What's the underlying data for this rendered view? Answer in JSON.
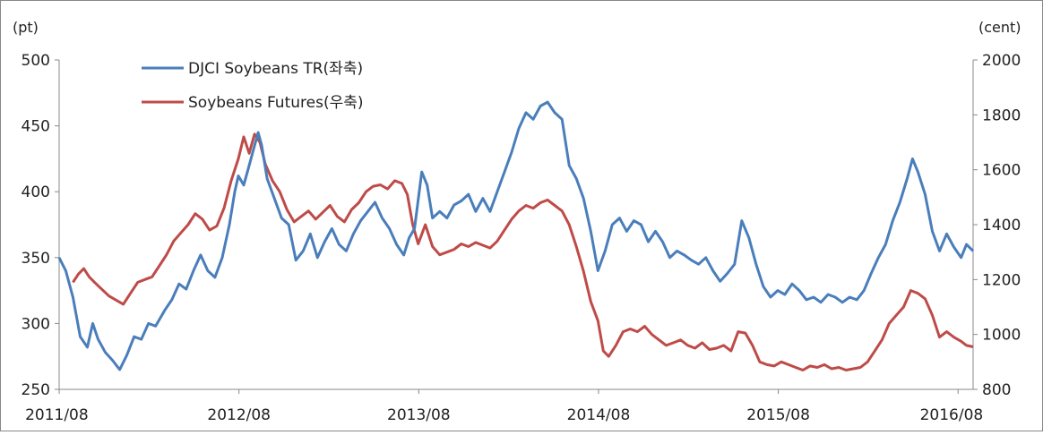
{
  "chart_data": {
    "type": "line",
    "title": "",
    "left_unit": "(pt)",
    "right_unit": "(cent)",
    "x_ticks": [
      "2011/08",
      "2012/08",
      "2013/08",
      "2014/08",
      "2015/08",
      "2016/08"
    ],
    "x_range": [
      2011.583,
      2016.667
    ],
    "left_axis": {
      "ylim": [
        250,
        500
      ],
      "ticks": [
        "500",
        "450",
        "400",
        "350",
        "300",
        "250"
      ]
    },
    "right_axis": {
      "ylim": [
        800,
        2000
      ],
      "ticks": [
        "2000",
        "1800",
        "1600",
        "1400",
        "1200",
        "1000",
        "800"
      ]
    },
    "grid": false,
    "legend_position": "top-left",
    "series": [
      {
        "name": "DJCI Soybeans TR(좌축)",
        "axis": "left",
        "color": "#4A7EBB",
        "points": [
          [
            2011.583,
            350
          ],
          [
            2011.62,
            340
          ],
          [
            2011.66,
            320
          ],
          [
            2011.7,
            290
          ],
          [
            2011.74,
            282
          ],
          [
            2011.77,
            300
          ],
          [
            2011.8,
            288
          ],
          [
            2011.84,
            278
          ],
          [
            2011.88,
            272
          ],
          [
            2011.92,
            265
          ],
          [
            2011.96,
            276
          ],
          [
            2012.0,
            290
          ],
          [
            2012.04,
            288
          ],
          [
            2012.08,
            300
          ],
          [
            2012.12,
            298
          ],
          [
            2012.17,
            310
          ],
          [
            2012.21,
            318
          ],
          [
            2012.25,
            330
          ],
          [
            2012.29,
            326
          ],
          [
            2012.33,
            340
          ],
          [
            2012.37,
            352
          ],
          [
            2012.41,
            340
          ],
          [
            2012.45,
            335
          ],
          [
            2012.49,
            350
          ],
          [
            2012.53,
            375
          ],
          [
            2012.56,
            400
          ],
          [
            2012.58,
            412
          ],
          [
            2012.61,
            405
          ],
          [
            2012.64,
            420
          ],
          [
            2012.66,
            430
          ],
          [
            2012.69,
            445
          ],
          [
            2012.71,
            435
          ],
          [
            2012.74,
            410
          ],
          [
            2012.78,
            395
          ],
          [
            2012.82,
            380
          ],
          [
            2012.86,
            375
          ],
          [
            2012.9,
            348
          ],
          [
            2012.94,
            355
          ],
          [
            2012.98,
            368
          ],
          [
            2013.02,
            350
          ],
          [
            2013.06,
            362
          ],
          [
            2013.1,
            372
          ],
          [
            2013.14,
            360
          ],
          [
            2013.18,
            355
          ],
          [
            2013.22,
            368
          ],
          [
            2013.26,
            378
          ],
          [
            2013.3,
            385
          ],
          [
            2013.34,
            392
          ],
          [
            2013.38,
            380
          ],
          [
            2013.42,
            372
          ],
          [
            2013.46,
            360
          ],
          [
            2013.5,
            352
          ],
          [
            2013.53,
            365
          ],
          [
            2013.56,
            372
          ],
          [
            2013.6,
            415
          ],
          [
            2013.63,
            405
          ],
          [
            2013.66,
            380
          ],
          [
            2013.7,
            385
          ],
          [
            2013.74,
            380
          ],
          [
            2013.78,
            390
          ],
          [
            2013.82,
            393
          ],
          [
            2013.86,
            398
          ],
          [
            2013.9,
            385
          ],
          [
            2013.94,
            395
          ],
          [
            2013.98,
            385
          ],
          [
            2014.02,
            400
          ],
          [
            2014.06,
            415
          ],
          [
            2014.1,
            430
          ],
          [
            2014.14,
            448
          ],
          [
            2014.18,
            460
          ],
          [
            2014.22,
            455
          ],
          [
            2014.26,
            465
          ],
          [
            2014.3,
            468
          ],
          [
            2014.34,
            460
          ],
          [
            2014.38,
            455
          ],
          [
            2014.42,
            420
          ],
          [
            2014.46,
            410
          ],
          [
            2014.5,
            395
          ],
          [
            2014.54,
            370
          ],
          [
            2014.58,
            340
          ],
          [
            2014.62,
            355
          ],
          [
            2014.66,
            375
          ],
          [
            2014.7,
            380
          ],
          [
            2014.74,
            370
          ],
          [
            2014.78,
            378
          ],
          [
            2014.82,
            375
          ],
          [
            2014.86,
            362
          ],
          [
            2014.9,
            370
          ],
          [
            2014.94,
            362
          ],
          [
            2014.98,
            350
          ],
          [
            2015.02,
            355
          ],
          [
            2015.06,
            352
          ],
          [
            2015.1,
            348
          ],
          [
            2015.14,
            345
          ],
          [
            2015.18,
            350
          ],
          [
            2015.22,
            340
          ],
          [
            2015.26,
            332
          ],
          [
            2015.3,
            338
          ],
          [
            2015.34,
            345
          ],
          [
            2015.38,
            378
          ],
          [
            2015.42,
            365
          ],
          [
            2015.46,
            345
          ],
          [
            2015.5,
            328
          ],
          [
            2015.54,
            320
          ],
          [
            2015.58,
            325
          ],
          [
            2015.62,
            322
          ],
          [
            2015.66,
            330
          ],
          [
            2015.7,
            325
          ],
          [
            2015.74,
            318
          ],
          [
            2015.78,
            320
          ],
          [
            2015.82,
            316
          ],
          [
            2015.86,
            322
          ],
          [
            2015.9,
            320
          ],
          [
            2015.94,
            316
          ],
          [
            2015.98,
            320
          ],
          [
            2016.02,
            318
          ],
          [
            2016.06,
            325
          ],
          [
            2016.1,
            338
          ],
          [
            2016.14,
            350
          ],
          [
            2016.18,
            360
          ],
          [
            2016.22,
            378
          ],
          [
            2016.26,
            392
          ],
          [
            2016.3,
            410
          ],
          [
            2016.33,
            425
          ],
          [
            2016.36,
            415
          ],
          [
            2016.4,
            398
          ],
          [
            2016.44,
            370
          ],
          [
            2016.48,
            355
          ],
          [
            2016.52,
            368
          ],
          [
            2016.56,
            358
          ],
          [
            2016.6,
            350
          ],
          [
            2016.63,
            360
          ],
          [
            2016.667,
            355
          ]
        ]
      },
      {
        "name": "Soybeans Futures(우축)",
        "axis": "right",
        "color": "#BE4B48",
        "points": [
          [
            2011.66,
            1190
          ],
          [
            2011.69,
            1220
          ],
          [
            2011.72,
            1240
          ],
          [
            2011.75,
            1210
          ],
          [
            2011.78,
            1190
          ],
          [
            2011.82,
            1165
          ],
          [
            2011.86,
            1140
          ],
          [
            2011.9,
            1125
          ],
          [
            2011.94,
            1110
          ],
          [
            2011.98,
            1150
          ],
          [
            2012.02,
            1190
          ],
          [
            2012.06,
            1200
          ],
          [
            2012.1,
            1210
          ],
          [
            2012.14,
            1250
          ],
          [
            2012.18,
            1290
          ],
          [
            2012.22,
            1340
          ],
          [
            2012.26,
            1370
          ],
          [
            2012.3,
            1400
          ],
          [
            2012.34,
            1440
          ],
          [
            2012.38,
            1420
          ],
          [
            2012.42,
            1380
          ],
          [
            2012.46,
            1395
          ],
          [
            2012.5,
            1460
          ],
          [
            2012.54,
            1560
          ],
          [
            2012.58,
            1640
          ],
          [
            2012.61,
            1720
          ],
          [
            2012.64,
            1660
          ],
          [
            2012.67,
            1730
          ],
          [
            2012.7,
            1700
          ],
          [
            2012.73,
            1620
          ],
          [
            2012.77,
            1560
          ],
          [
            2012.81,
            1520
          ],
          [
            2012.85,
            1455
          ],
          [
            2012.89,
            1410
          ],
          [
            2012.93,
            1430
          ],
          [
            2012.97,
            1450
          ],
          [
            2013.01,
            1420
          ],
          [
            2013.05,
            1445
          ],
          [
            2013.09,
            1470
          ],
          [
            2013.13,
            1430
          ],
          [
            2013.17,
            1410
          ],
          [
            2013.21,
            1455
          ],
          [
            2013.25,
            1480
          ],
          [
            2013.29,
            1520
          ],
          [
            2013.33,
            1540
          ],
          [
            2013.37,
            1545
          ],
          [
            2013.41,
            1530
          ],
          [
            2013.45,
            1560
          ],
          [
            2013.49,
            1550
          ],
          [
            2013.52,
            1510
          ],
          [
            2013.55,
            1400
          ],
          [
            2013.58,
            1330
          ],
          [
            2013.62,
            1400
          ],
          [
            2013.66,
            1320
          ],
          [
            2013.7,
            1290
          ],
          [
            2013.74,
            1300
          ],
          [
            2013.78,
            1310
          ],
          [
            2013.82,
            1330
          ],
          [
            2013.86,
            1320
          ],
          [
            2013.9,
            1335
          ],
          [
            2013.94,
            1325
          ],
          [
            2013.98,
            1315
          ],
          [
            2014.02,
            1340
          ],
          [
            2014.06,
            1380
          ],
          [
            2014.1,
            1420
          ],
          [
            2014.14,
            1450
          ],
          [
            2014.18,
            1470
          ],
          [
            2014.22,
            1460
          ],
          [
            2014.26,
            1480
          ],
          [
            2014.3,
            1490
          ],
          [
            2014.34,
            1470
          ],
          [
            2014.38,
            1450
          ],
          [
            2014.42,
            1400
          ],
          [
            2014.46,
            1320
          ],
          [
            2014.5,
            1230
          ],
          [
            2014.54,
            1120
          ],
          [
            2014.58,
            1050
          ],
          [
            2014.61,
            940
          ],
          [
            2014.64,
            920
          ],
          [
            2014.68,
            960
          ],
          [
            2014.72,
            1010
          ],
          [
            2014.76,
            1020
          ],
          [
            2014.8,
            1010
          ],
          [
            2014.84,
            1030
          ],
          [
            2014.88,
            1000
          ],
          [
            2014.92,
            980
          ],
          [
            2014.96,
            960
          ],
          [
            2015.0,
            970
          ],
          [
            2015.04,
            980
          ],
          [
            2015.08,
            960
          ],
          [
            2015.12,
            950
          ],
          [
            2015.16,
            970
          ],
          [
            2015.2,
            945
          ],
          [
            2015.24,
            950
          ],
          [
            2015.28,
            960
          ],
          [
            2015.32,
            940
          ],
          [
            2015.36,
            1010
          ],
          [
            2015.4,
            1005
          ],
          [
            2015.44,
            960
          ],
          [
            2015.48,
            900
          ],
          [
            2015.52,
            890
          ],
          [
            2015.56,
            885
          ],
          [
            2015.6,
            900
          ],
          [
            2015.64,
            890
          ],
          [
            2015.68,
            880
          ],
          [
            2015.72,
            870
          ],
          [
            2015.76,
            885
          ],
          [
            2015.8,
            880
          ],
          [
            2015.84,
            890
          ],
          [
            2015.88,
            875
          ],
          [
            2015.92,
            880
          ],
          [
            2015.96,
            870
          ],
          [
            2016.0,
            875
          ],
          [
            2016.04,
            880
          ],
          [
            2016.08,
            900
          ],
          [
            2016.12,
            940
          ],
          [
            2016.16,
            980
          ],
          [
            2016.2,
            1040
          ],
          [
            2016.24,
            1070
          ],
          [
            2016.28,
            1100
          ],
          [
            2016.32,
            1160
          ],
          [
            2016.36,
            1150
          ],
          [
            2016.4,
            1130
          ],
          [
            2016.44,
            1070
          ],
          [
            2016.48,
            990
          ],
          [
            2016.52,
            1010
          ],
          [
            2016.56,
            990
          ],
          [
            2016.6,
            975
          ],
          [
            2016.63,
            960
          ],
          [
            2016.667,
            955
          ]
        ]
      }
    ]
  }
}
